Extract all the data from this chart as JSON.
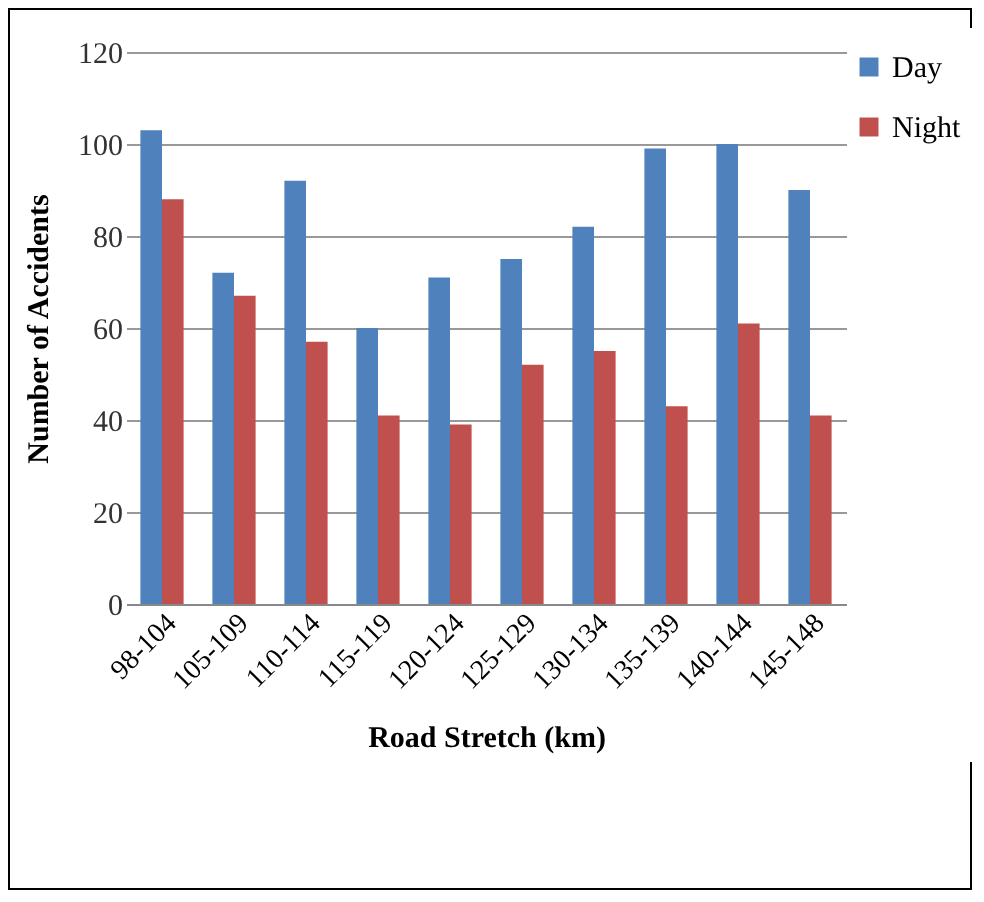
{
  "chart_data": {
    "type": "bar",
    "xlabel": "Road Stretch (km)",
    "ylabel": "Number of Accidents",
    "categories": [
      "98-104",
      "105-109",
      "110-114",
      "115-119",
      "120-124",
      "125-129",
      "130-134",
      "135-139",
      "140-144",
      "145-148"
    ],
    "series": [
      {
        "name": "Day",
        "color": "#4f81bd",
        "values": [
          103,
          72,
          92,
          60,
          71,
          75,
          82,
          99,
          100,
          90
        ]
      },
      {
        "name": "Night",
        "color": "#c0504d",
        "values": [
          88,
          67,
          57,
          41,
          39,
          52,
          55,
          43,
          61,
          41
        ]
      }
    ],
    "ylim": [
      0,
      120
    ],
    "yticks": [
      0,
      20,
      40,
      60,
      80,
      100,
      120
    ],
    "grid": "y",
    "legend": "right"
  }
}
